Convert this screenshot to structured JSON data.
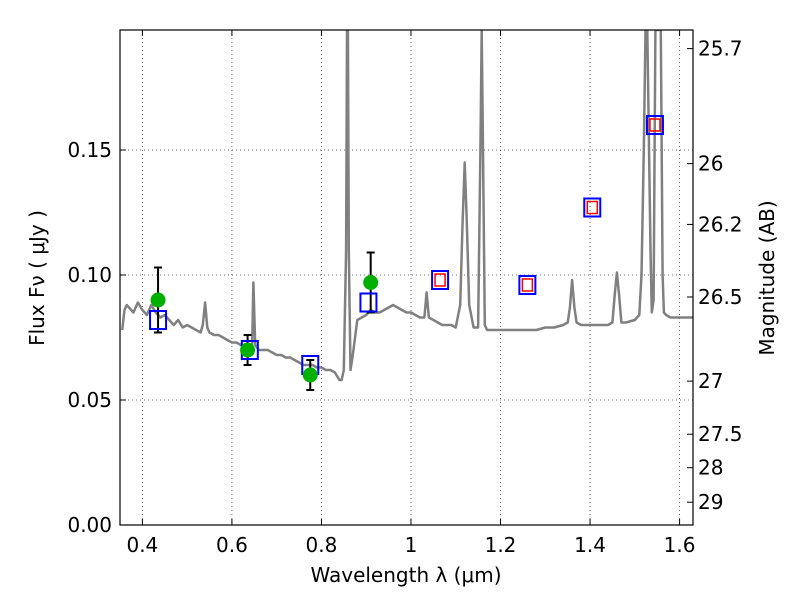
{
  "chart_data": {
    "type": "scatter",
    "xlabel": "Wavelength  λ (μm)",
    "ylabel": "Flux  Fν  ( μJy )",
    "ylabel2": "Magnitude (AB)",
    "xlim": [
      0.35,
      1.63
    ],
    "ylim": [
      0.0,
      0.198
    ],
    "x_ticks": [
      0.4,
      0.6,
      0.8,
      1.0,
      1.2,
      1.4,
      1.6
    ],
    "x_tick_labels": [
      "0.4",
      "0.6",
      "0.8",
      "1",
      "1.2",
      "1.4",
      "1.6"
    ],
    "y_ticks": [
      0.0,
      0.05,
      0.1,
      0.15
    ],
    "y_tick_labels": [
      "0.00",
      "0.05",
      "0.10",
      "0.15"
    ],
    "y2_ticks": [
      25.7,
      26,
      26.2,
      26.5,
      27,
      27.5,
      28,
      29
    ],
    "y2_tick_labels": [
      "25.7",
      "26",
      "26.2",
      "26.5",
      "27",
      "27.5",
      "28",
      "29"
    ],
    "grid": true,
    "colors": {
      "spectrum": "#808080",
      "observed": "#00b000",
      "model_box": "#0000ff",
      "model_inner": "#ff0000",
      "errorbar": "#000000"
    },
    "series": [
      {
        "marker": "circle",
        "x": [
          0.435,
          0.635,
          0.775,
          0.91
        ],
        "y": [
          0.09,
          0.07,
          0.06,
          0.097
        ],
        "err": [
          0.013,
          0.006,
          0.006,
          0.012
        ]
      },
      {
        "marker": "square",
        "x": [
          0.435,
          0.64,
          0.775,
          0.905,
          1.065,
          1.26,
          1.405,
          1.545
        ],
        "y": [
          0.082,
          0.07,
          0.064,
          0.089,
          0.098,
          0.096,
          0.127,
          0.16
        ]
      },
      {
        "marker": "square-inner",
        "x": [
          1.065,
          1.26,
          1.405,
          1.545
        ],
        "y": [
          0.098,
          0.096,
          0.127,
          0.16
        ]
      },
      {
        "type": "line",
        "x": [
          0.355,
          0.36,
          0.365,
          0.37,
          0.38,
          0.39,
          0.4,
          0.41,
          0.42,
          0.43,
          0.44,
          0.45,
          0.46,
          0.47,
          0.48,
          0.49,
          0.5,
          0.51,
          0.52,
          0.53,
          0.535,
          0.54,
          0.545,
          0.55,
          0.56,
          0.57,
          0.58,
          0.59,
          0.6,
          0.61,
          0.62,
          0.63,
          0.64,
          0.645,
          0.648,
          0.652,
          0.66,
          0.67,
          0.68,
          0.69,
          0.7,
          0.71,
          0.72,
          0.73,
          0.74,
          0.75,
          0.76,
          0.77,
          0.78,
          0.79,
          0.8,
          0.81,
          0.82,
          0.83,
          0.84,
          0.845,
          0.85,
          0.855,
          0.857,
          0.859,
          0.861,
          0.865,
          0.87,
          0.88,
          0.89,
          0.9,
          0.91,
          0.92,
          0.93,
          0.94,
          0.95,
          0.96,
          0.97,
          0.98,
          0.99,
          1.0,
          1.01,
          1.02,
          1.03,
          1.035,
          1.04,
          1.05,
          1.06,
          1.07,
          1.08,
          1.09,
          1.1,
          1.11,
          1.115,
          1.12,
          1.125,
          1.13,
          1.14,
          1.15,
          1.155,
          1.158,
          1.161,
          1.165,
          1.17,
          1.18,
          1.2,
          1.22,
          1.24,
          1.26,
          1.28,
          1.3,
          1.32,
          1.34,
          1.35,
          1.355,
          1.36,
          1.365,
          1.37,
          1.38,
          1.4,
          1.42,
          1.44,
          1.45,
          1.455,
          1.46,
          1.465,
          1.47,
          1.48,
          1.5,
          1.51,
          1.515,
          1.52,
          1.524,
          1.528,
          1.535,
          1.538,
          1.542,
          1.546,
          1.55,
          1.555,
          1.558,
          1.562,
          1.565,
          1.57,
          1.58,
          1.6,
          1.63
        ],
        "y": [
          0.078,
          0.086,
          0.088,
          0.087,
          0.085,
          0.089,
          0.086,
          0.084,
          0.088,
          0.085,
          0.083,
          0.084,
          0.082,
          0.08,
          0.082,
          0.079,
          0.08,
          0.079,
          0.078,
          0.077,
          0.08,
          0.089,
          0.079,
          0.077,
          0.076,
          0.076,
          0.075,
          0.074,
          0.073,
          0.073,
          0.072,
          0.072,
          0.071,
          0.071,
          0.097,
          0.072,
          0.07,
          0.07,
          0.07,
          0.069,
          0.068,
          0.068,
          0.067,
          0.067,
          0.066,
          0.065,
          0.064,
          0.064,
          0.064,
          0.063,
          0.063,
          0.062,
          0.062,
          0.061,
          0.058,
          0.058,
          0.062,
          0.11,
          0.198,
          0.198,
          0.11,
          0.062,
          0.068,
          0.082,
          0.083,
          0.084,
          0.086,
          0.085,
          0.085,
          0.086,
          0.087,
          0.088,
          0.087,
          0.086,
          0.085,
          0.085,
          0.084,
          0.083,
          0.083,
          0.093,
          0.083,
          0.082,
          0.081,
          0.08,
          0.08,
          0.08,
          0.079,
          0.088,
          0.12,
          0.145,
          0.12,
          0.088,
          0.079,
          0.079,
          0.15,
          0.198,
          0.15,
          0.08,
          0.078,
          0.078,
          0.078,
          0.078,
          0.078,
          0.078,
          0.078,
          0.079,
          0.079,
          0.08,
          0.081,
          0.087,
          0.098,
          0.087,
          0.081,
          0.08,
          0.08,
          0.08,
          0.08,
          0.081,
          0.092,
          0.101,
          0.092,
          0.081,
          0.081,
          0.082,
          0.084,
          0.1,
          0.15,
          0.198,
          0.198,
          0.11,
          0.085,
          0.09,
          0.198,
          0.198,
          0.198,
          0.198,
          0.1,
          0.085,
          0.084,
          0.083,
          0.083,
          0.083
        ]
      }
    ]
  }
}
